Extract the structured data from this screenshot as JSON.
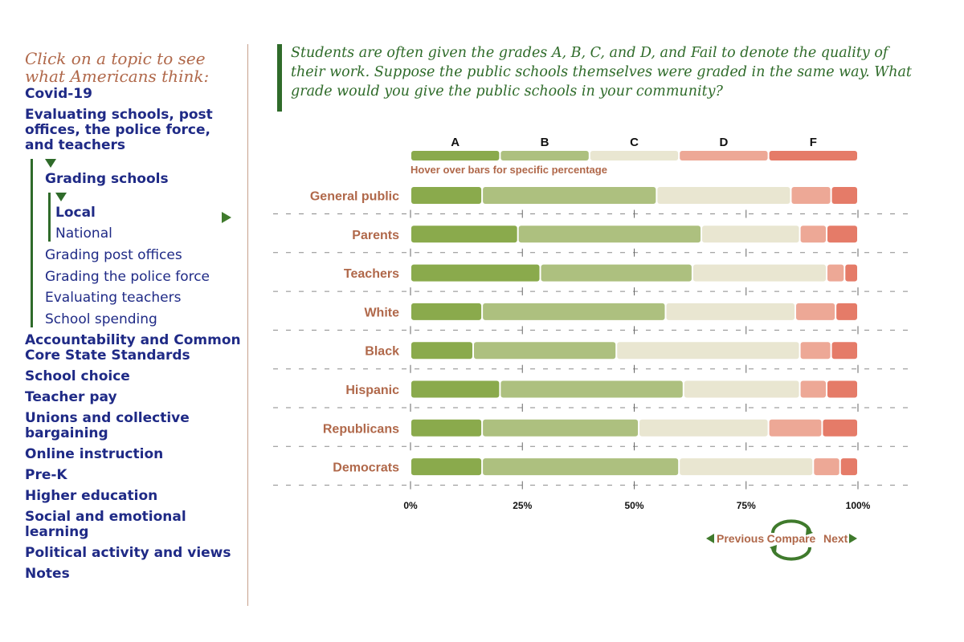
{
  "sidebar": {
    "intro": "Click on a topic to see what Americans think:",
    "topics_before": [
      "Covid-19",
      "Evaluating schools, post offices, the police force, and teachers"
    ],
    "grading_schools": "Grading schools",
    "local": "Local",
    "national": "National",
    "sub_items": [
      "Grading post offices",
      "Grading the police force",
      "Evaluating teachers",
      "School spending"
    ],
    "topics_after": [
      "Accountability and Common Core State Standards",
      "School choice",
      "Teacher pay",
      "Unions and collective bargaining",
      "Online instruction",
      "Pre-K",
      "Higher education",
      "Social and emotional learning",
      "Political activity and views",
      "Notes"
    ]
  },
  "question": "Students are often given the grades A, B, C, and D, and Fail to denote the quality of their work. Suppose the public schools themselves were graded in the same way. What grade would you give the public schools in your community?",
  "hover_hint": "Hover over bars for specific percentage",
  "nav": {
    "previous": "Previous",
    "compare": "Compare",
    "next": "Next"
  },
  "colors": {
    "A": "#8aaa4c",
    "B": "#adc07f",
    "C": "#e9e6d1",
    "D": "#eda896",
    "F": "#e57b68"
  },
  "chart_data": {
    "type": "bar",
    "orientation": "horizontal",
    "stacked": true,
    "legend": [
      "A",
      "B",
      "C",
      "D",
      "F"
    ],
    "categories": [
      "General public",
      "Parents",
      "Teachers",
      "White",
      "Black",
      "Hispanic",
      "Republicans",
      "Democrats"
    ],
    "series": [
      {
        "name": "A",
        "values": [
          16,
          24,
          29,
          16,
          14,
          20,
          16,
          16
        ]
      },
      {
        "name": "B",
        "values": [
          39,
          41,
          34,
          41,
          32,
          41,
          35,
          44
        ]
      },
      {
        "name": "C",
        "values": [
          30,
          22,
          30,
          29,
          41,
          26,
          29,
          30
        ]
      },
      {
        "name": "D",
        "values": [
          9,
          6,
          4,
          9,
          7,
          6,
          12,
          6
        ]
      },
      {
        "name": "F",
        "values": [
          6,
          7,
          3,
          5,
          6,
          7,
          8,
          4
        ]
      }
    ],
    "xticks": [
      "0%",
      "25%",
      "50%",
      "75%",
      "100%"
    ],
    "xlim": [
      0,
      100
    ]
  }
}
